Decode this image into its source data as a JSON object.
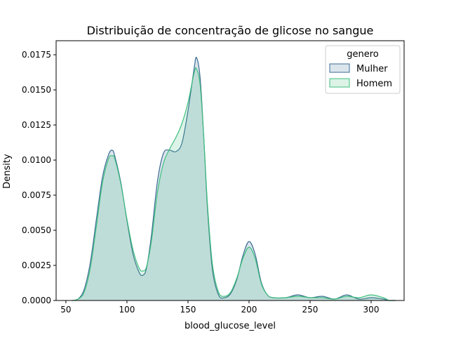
{
  "chart_data": {
    "type": "area",
    "title": "Distribuição de concentração de glicose no sangue",
    "xlabel": "blood_glucose_level",
    "ylabel": "Density",
    "xlim": [
      42,
      327
    ],
    "ylim": [
      0,
      0.0185
    ],
    "x_ticks": [
      50,
      100,
      150,
      200,
      250,
      300
    ],
    "y_ticks": [
      0.0,
      0.0025,
      0.005,
      0.0075,
      0.01,
      0.0125,
      0.015,
      0.0175
    ],
    "y_tick_labels": [
      "0.0000",
      "0.0025",
      "0.0050",
      "0.0075",
      "0.0100",
      "0.0125",
      "0.0150",
      "0.0175"
    ],
    "grid": false,
    "legend": {
      "title": "genero",
      "position": "top-right"
    },
    "x": [
      55,
      60,
      65,
      70,
      75,
      80,
      85,
      88,
      90,
      95,
      100,
      105,
      110,
      113,
      116,
      120,
      125,
      130,
      135,
      140,
      145,
      150,
      155,
      157,
      160,
      163,
      166,
      170,
      175,
      180,
      185,
      190,
      195,
      200,
      205,
      210,
      215,
      220,
      230,
      240,
      250,
      260,
      270,
      280,
      290,
      300,
      310,
      315,
      320
    ],
    "series": [
      {
        "name": "Mulher",
        "color": "#3b6b93",
        "fill": "#dbe5ec",
        "values": [
          0.0,
          0.0001,
          0.0008,
          0.0027,
          0.0058,
          0.0088,
          0.0104,
          0.0107,
          0.0103,
          0.0084,
          0.0057,
          0.0033,
          0.002,
          0.0018,
          0.0023,
          0.0046,
          0.0085,
          0.0105,
          0.0107,
          0.0106,
          0.0112,
          0.0135,
          0.0165,
          0.0173,
          0.0158,
          0.0115,
          0.0065,
          0.0022,
          0.0004,
          0.0002,
          0.0005,
          0.0015,
          0.0032,
          0.0042,
          0.0033,
          0.0013,
          0.0004,
          0.0002,
          0.0002,
          0.0004,
          0.0002,
          0.0003,
          0.0001,
          0.0004,
          0.0001,
          0.0002,
          0.0001,
          0.0,
          0.0
        ]
      },
      {
        "name": "Homem",
        "color": "#3fbf7f",
        "fill": "#dcf3e6",
        "values": [
          0.0,
          0.0001,
          0.0006,
          0.0023,
          0.0053,
          0.0084,
          0.0101,
          0.0103,
          0.0101,
          0.0083,
          0.0058,
          0.0036,
          0.0023,
          0.0021,
          0.0024,
          0.0042,
          0.0077,
          0.0098,
          0.0108,
          0.0116,
          0.0126,
          0.0141,
          0.0162,
          0.0165,
          0.0153,
          0.0115,
          0.0068,
          0.0026,
          0.0006,
          0.0003,
          0.0006,
          0.0016,
          0.003,
          0.0038,
          0.003,
          0.0012,
          0.0004,
          0.0002,
          0.0002,
          0.0003,
          0.0002,
          0.0002,
          0.0001,
          0.0003,
          0.0002,
          0.0004,
          0.0002,
          0.0,
          0.0
        ]
      }
    ]
  }
}
